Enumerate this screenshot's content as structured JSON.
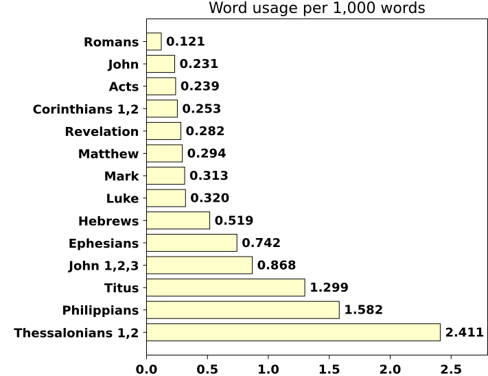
{
  "chart_data": {
    "type": "bar",
    "orientation": "horizontal",
    "title": "Word usage per 1,000 words",
    "xlabel": "",
    "ylabel": "",
    "categories": [
      "Romans",
      "John",
      "Acts",
      "Corinthians 1,2",
      "Revelation",
      "Matthew",
      "Mark",
      "Luke",
      "Hebrews",
      "Ephesians",
      "John 1,2,3",
      "Titus",
      "Philippians",
      "Thessalonians 1,2"
    ],
    "values": [
      0.121,
      0.231,
      0.239,
      0.253,
      0.282,
      0.294,
      0.313,
      0.32,
      0.519,
      0.742,
      0.868,
      1.299,
      1.582,
      2.411
    ],
    "value_labels": [
      "0.121",
      "0.231",
      "0.239",
      "0.253",
      "0.282",
      "0.294",
      "0.313",
      "0.320",
      "0.519",
      "0.742",
      "0.868",
      "1.299",
      "1.582",
      "2.411"
    ],
    "xlim": [
      0,
      2.8
    ],
    "xticks": [
      0.0,
      0.5,
      1.0,
      1.5,
      2.0,
      2.5
    ],
    "xtick_labels": [
      "0.0",
      "0.5",
      "1.0",
      "1.5",
      "2.0",
      "2.5"
    ],
    "bar_color": "#ffffcc",
    "edge_color": "#000000",
    "grid": false,
    "legend": "none"
  }
}
